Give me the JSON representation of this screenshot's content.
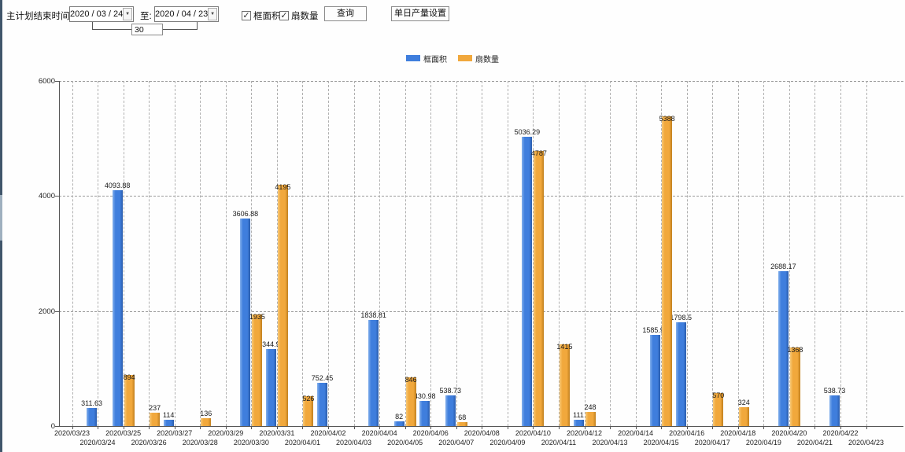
{
  "toolbar": {
    "label_main": "主计划结束时间:",
    "date_from": "2020 / 03 / 24",
    "to_label": "至:",
    "date_to": "2020 / 04 / 23",
    "days_value": "30",
    "checkboxes": [
      {
        "label": "框面积",
        "checked": true
      },
      {
        "label": "扇数量",
        "checked": true
      }
    ],
    "query_button": "查询",
    "daily_output_button": "单日产量设置"
  },
  "icons": {
    "dropdown_glyph": "▼",
    "check_glyph": "✓"
  },
  "colors": {
    "series_blue": "#3f7edd",
    "series_blue_light": "#85b1ec",
    "series_blue_dark": "#2a5cab",
    "series_orange": "#f1a83c",
    "series_orange_light": "#f8c977",
    "series_orange_dark": "#c07f1e",
    "axis": "#555555",
    "grid": "#9a9a9a",
    "left_strip": "#41566b"
  },
  "chart_data": {
    "type": "bar",
    "title": "",
    "xlabel": "",
    "ylabel": "",
    "ylim": [
      0,
      6000
    ],
    "yticks": [
      0,
      2000,
      4000,
      6000
    ],
    "grid": true,
    "legend_position": "top",
    "categories": [
      "2020/03/23",
      "2020/03/24",
      "2020/03/25",
      "2020/03/26",
      "2020/03/27",
      "2020/03/28",
      "2020/03/29",
      "2020/03/30",
      "2020/03/31",
      "2020/04/01",
      "2020/04/02",
      "2020/04/03",
      "2020/04/04",
      "2020/04/05",
      "2020/04/06",
      "2020/04/07",
      "2020/04/08",
      "2020/04/09",
      "2020/04/10",
      "2020/04/11",
      "2020/04/12",
      "2020/04/13",
      "2020/04/14",
      "2020/04/15",
      "2020/04/16",
      "2020/04/17",
      "2020/04/18",
      "2020/04/19",
      "2020/04/20",
      "2020/04/21",
      "2020/04/22",
      "2020/04/23"
    ],
    "series": [
      {
        "name": "框面积",
        "values": [
          null,
          311.63,
          4093.88,
          null,
          114,
          null,
          null,
          3606.88,
          1344.95,
          null,
          752.45,
          null,
          1838.81,
          82,
          430.98,
          538.73,
          null,
          null,
          5036.29,
          null,
          111,
          null,
          null,
          1585.96,
          1798.5,
          null,
          null,
          null,
          2688.17,
          null,
          538.73,
          null
        ]
      },
      {
        "name": "扇数量",
        "values": [
          null,
          null,
          894,
          237,
          null,
          136,
          null,
          1935,
          4195,
          526,
          null,
          null,
          null,
          846,
          null,
          68,
          null,
          null,
          4787,
          1415,
          248,
          null,
          null,
          5388,
          null,
          570,
          324,
          null,
          1368,
          null,
          null,
          null
        ]
      }
    ]
  },
  "legend": [
    {
      "label": "框面积"
    },
    {
      "label": "扇数量"
    }
  ]
}
